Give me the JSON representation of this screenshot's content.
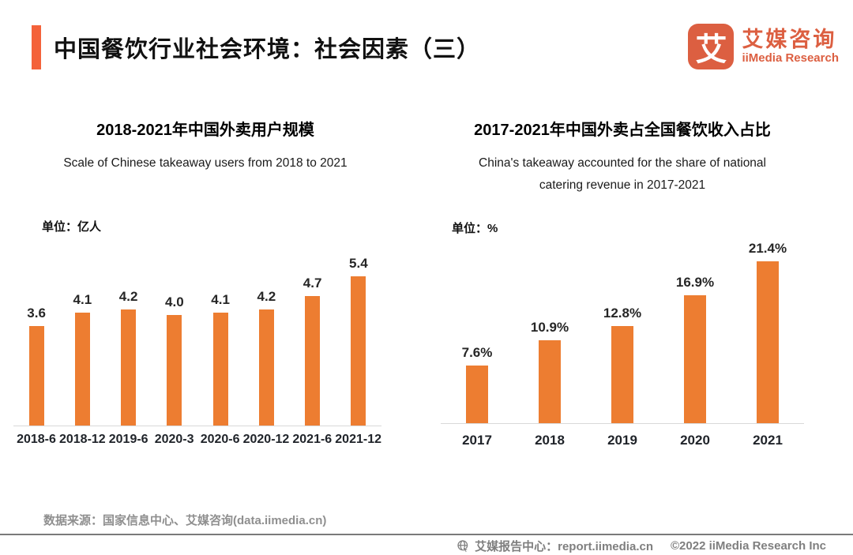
{
  "header": {
    "title": "中国餐饮行业社会环境：社会因素（三）"
  },
  "logo": {
    "icon_char": "艾",
    "name_cn": "艾媒咨询",
    "name_en": "iiMedia Research"
  },
  "colors": {
    "accent": "#F4623A",
    "brand": "#DC5F41",
    "bar": "#ED7D31",
    "baseline": "#D9D9D9"
  },
  "chart_data": [
    {
      "type": "bar",
      "title": "2018-2021年中国外卖用户规模",
      "subtitle": "Scale of Chinese takeaway users from 2018 to 2021",
      "unit": "单位：亿人",
      "categories": [
        "2018-6",
        "2018-12",
        "2019-6",
        "2020-3",
        "2020-6",
        "2020-12",
        "2021-6",
        "2021-12"
      ],
      "values": [
        3.6,
        4.1,
        4.2,
        4.0,
        4.1,
        4.2,
        4.7,
        5.4
      ],
      "value_labels": [
        "3.6",
        "4.1",
        "4.2",
        "4.0",
        "4.1",
        "4.2",
        "4.7",
        "5.4"
      ],
      "xlabel": "",
      "ylabel": "亿人",
      "ylim": [
        0,
        6
      ],
      "bar_color": "#ED7D31",
      "grid": false,
      "legend": "none"
    },
    {
      "type": "bar",
      "title": "2017-2021年中国外卖占全国餐饮收入占比",
      "subtitle_line1": "China's takeaway accounted for the share of national",
      "subtitle_line2": "catering revenue in 2017-2021",
      "unit": "单位：%",
      "categories": [
        "2017",
        "2018",
        "2019",
        "2020",
        "2021"
      ],
      "values": [
        7.6,
        10.9,
        12.8,
        16.9,
        21.4
      ],
      "value_labels": [
        "7.6%",
        "10.9%",
        "12.8%",
        "16.9%",
        "21.4%"
      ],
      "xlabel": "",
      "ylabel": "%",
      "ylim": [
        0,
        22
      ],
      "bar_color": "#ED7D31",
      "grid": false,
      "legend": "none"
    }
  ],
  "footer": {
    "source": "数据来源：国家信息中心、艾媒咨询(data.iimedia.cn)",
    "report_center": "艾媒报告中心：report.iimedia.cn",
    "copyright": "©2022  iiMedia Research Inc"
  }
}
